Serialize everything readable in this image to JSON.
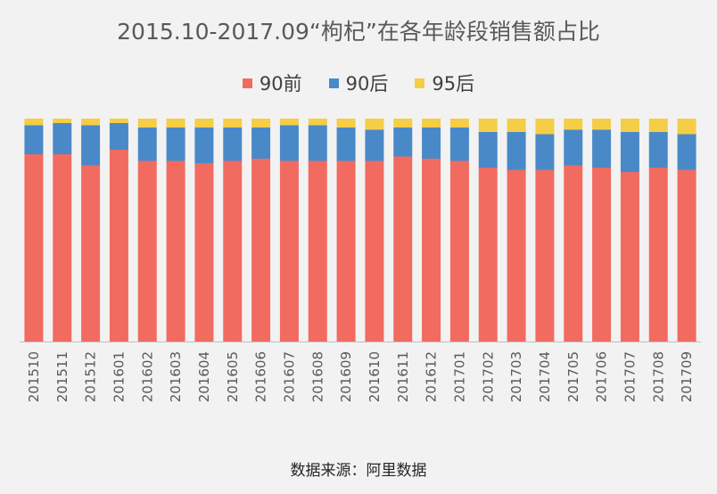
{
  "chart_data": {
    "type": "bar",
    "stacked": true,
    "title": "2015.10-2017.09“枸杞”在各年龄段销售额占比",
    "source_text": "数据来源：阿里数据",
    "ylim": [
      0,
      100
    ],
    "legend_position": "top",
    "grid": false,
    "categories": [
      "201510",
      "201511",
      "201512",
      "201601",
      "201602",
      "201603",
      "201604",
      "201605",
      "201606",
      "201607",
      "201608",
      "201609",
      "201610",
      "201611",
      "201612",
      "201701",
      "201702",
      "201703",
      "201704",
      "201705",
      "201706",
      "201707",
      "201708",
      "201709"
    ],
    "series": [
      {
        "name": "90前",
        "color": "#f26b60",
        "values": [
          84,
          84,
          79,
          86,
          81,
          81,
          80,
          81,
          82,
          81,
          81,
          81,
          81,
          83,
          82,
          81,
          78,
          77,
          77,
          79,
          78,
          76,
          78,
          77
        ]
      },
      {
        "name": "90后",
        "color": "#4a89c8",
        "values": [
          13,
          14,
          18,
          12,
          15,
          15,
          16,
          15,
          14,
          16,
          16,
          15,
          14,
          13,
          14,
          15,
          16,
          17,
          16,
          16,
          17,
          18,
          16,
          16
        ]
      },
      {
        "name": "95后",
        "color": "#f5cd47",
        "values": [
          3,
          2,
          3,
          2,
          4,
          4,
          4,
          4,
          4,
          3,
          3,
          4,
          5,
          4,
          4,
          4,
          6,
          6,
          7,
          5,
          5,
          6,
          6,
          7
        ]
      }
    ]
  }
}
